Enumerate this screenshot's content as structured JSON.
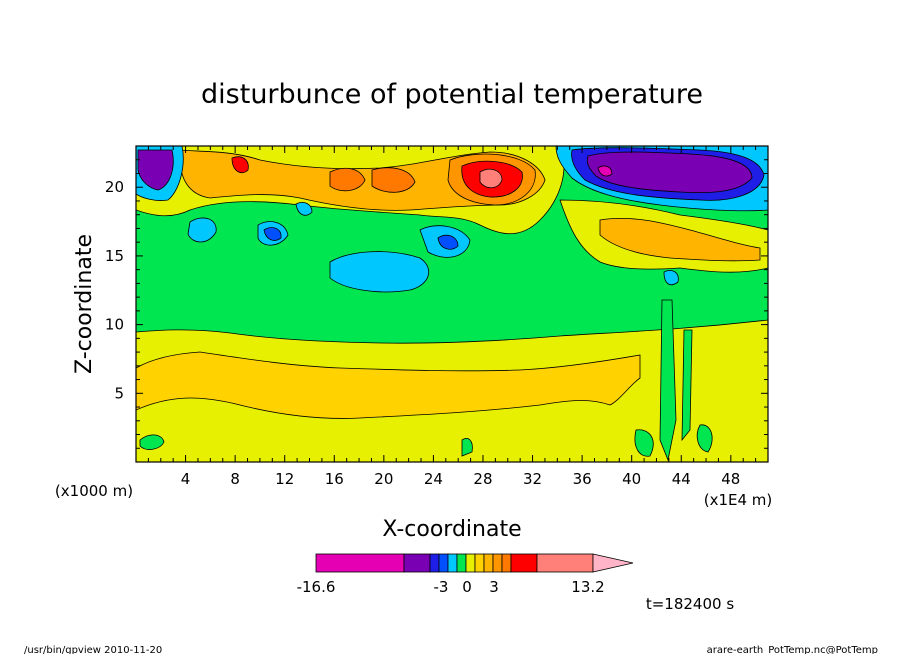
{
  "chart_data": {
    "type": "heatmap",
    "title": "disturbunce of potential temperature",
    "xlabel": "X-coordinate",
    "ylabel": "Z-coordinate",
    "x_unit_label": "(x1E4 m)",
    "y_unit_label": "(x1000 m)",
    "xlim": [
      0,
      51
    ],
    "ylim": [
      0,
      23
    ],
    "x_ticks": [
      4,
      8,
      12,
      16,
      20,
      24,
      28,
      32,
      36,
      40,
      44,
      48
    ],
    "y_ticks": [
      5,
      10,
      15,
      20
    ],
    "colorbar": {
      "min_label": "-16.6",
      "max_label": "13.2",
      "tick_labels": [
        "-3",
        "0",
        "3"
      ],
      "colors": [
        "#e600b4",
        "#7a00b4",
        "#1e1ee6",
        "#0050ff",
        "#00c8ff",
        "#00e650",
        "#e6f000",
        "#ffd200",
        "#ffb400",
        "#ff9600",
        "#ff7800",
        "#ff0000",
        "#ff8078",
        "#ffb4c8"
      ]
    },
    "time_label": "t=182400 s",
    "footer_left": "/usr/bin/gpview   2010-11-20",
    "footer_right": "arare-earth_PotTemp.nc@PotTemp"
  }
}
